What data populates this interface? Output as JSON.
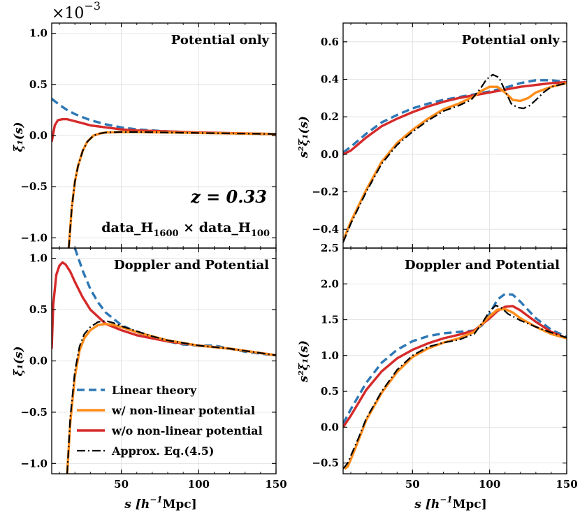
{
  "figure": {
    "scale_note": "×10",
    "scale_exp": "−3",
    "xlabel_main": "s [h",
    "xlabel_sup": "−1",
    "xlabel_unit": "Mpc]",
    "redshift": "z = 0.33",
    "cross": "data_H",
    "cross_sub1": "1600",
    "cross_x": "×",
    "cross_b": "data_H",
    "cross_sub2": "100",
    "ylabel_left": "ξ₁(s)",
    "ylabel_right": "s²ξ₁(s)"
  },
  "colors": {
    "linear": "#2e78b5",
    "with_nl": "#ff8c1a",
    "without_nl": "#d62a2a",
    "approx": "#000000"
  },
  "legend": [
    {
      "key": "linear",
      "label": "Linear theory"
    },
    {
      "key": "with_nl",
      "label": "w/ non-linear potential"
    },
    {
      "key": "without_nl",
      "label": "w/o non-linear potential"
    },
    {
      "key": "approx",
      "label": "Approx. Eq.(4.5)"
    }
  ],
  "chart_data": [
    {
      "type": "line",
      "title": "Potential only",
      "panel": "top-left",
      "xlim": [
        5,
        150
      ],
      "ylim": [
        -1.1,
        1.1
      ],
      "xticks": [
        50,
        100,
        150
      ],
      "yticks": [
        -1.0,
        -0.5,
        0.0,
        0.5,
        1.0
      ],
      "series": [
        {
          "key": "linear",
          "x": [
            5,
            10,
            15,
            20,
            25,
            30,
            40,
            50,
            60,
            70,
            80,
            100,
            120,
            150
          ],
          "y": [
            0.36,
            0.3,
            0.25,
            0.21,
            0.18,
            0.15,
            0.11,
            0.08,
            0.06,
            0.05,
            0.04,
            0.03,
            0.02,
            0.015
          ]
        },
        {
          "key": "without_nl",
          "x": [
            5,
            7,
            9,
            12,
            15,
            20,
            25,
            30,
            40,
            50,
            60,
            80,
            100,
            150
          ],
          "y": [
            -0.06,
            0.1,
            0.15,
            0.16,
            0.16,
            0.14,
            0.12,
            0.1,
            0.08,
            0.06,
            0.05,
            0.04,
            0.03,
            0.015
          ]
        },
        {
          "key": "with_nl",
          "x": [
            16,
            18,
            20,
            22,
            25,
            28,
            32,
            36,
            40,
            50,
            60,
            80,
            100,
            150
          ],
          "y": [
            -1.1,
            -0.7,
            -0.45,
            -0.3,
            -0.15,
            -0.06,
            0.0,
            0.02,
            0.03,
            0.035,
            0.035,
            0.03,
            0.025,
            0.015
          ]
        },
        {
          "key": "approx",
          "x": [
            16,
            18,
            20,
            22,
            25,
            28,
            32,
            36,
            40,
            50,
            60,
            80,
            100,
            150
          ],
          "y": [
            -1.1,
            -0.7,
            -0.45,
            -0.3,
            -0.15,
            -0.06,
            0.0,
            0.02,
            0.03,
            0.035,
            0.035,
            0.03,
            0.025,
            0.015
          ]
        }
      ]
    },
    {
      "type": "line",
      "title": "Doppler and Potential",
      "panel": "bottom-left",
      "xlim": [
        5,
        150
      ],
      "ylim": [
        -1.1,
        1.1
      ],
      "xticks": [
        50,
        100,
        150
      ],
      "yticks": [
        -1.0,
        -0.5,
        0.0,
        0.5,
        1.0
      ],
      "series": [
        {
          "key": "linear",
          "x": [
            20,
            25,
            30,
            35,
            40,
            50,
            60,
            70,
            80,
            90,
            100,
            110,
            120,
            130,
            140,
            150
          ],
          "y": [
            1.1,
            0.88,
            0.7,
            0.57,
            0.47,
            0.35,
            0.28,
            0.23,
            0.19,
            0.16,
            0.15,
            0.15,
            0.12,
            0.09,
            0.07,
            0.055
          ]
        },
        {
          "key": "without_nl",
          "x": [
            5,
            6,
            8,
            10,
            12,
            14,
            17,
            20,
            25,
            30,
            40,
            50,
            60,
            80,
            100,
            120,
            150
          ],
          "y": [
            0.12,
            0.55,
            0.84,
            0.93,
            0.96,
            0.94,
            0.87,
            0.77,
            0.62,
            0.5,
            0.36,
            0.3,
            0.25,
            0.19,
            0.15,
            0.12,
            0.055
          ]
        },
        {
          "key": "with_nl",
          "x": [
            15,
            17,
            20,
            23,
            26,
            30,
            35,
            40,
            45,
            50,
            60,
            70,
            80,
            100,
            120,
            150
          ],
          "y": [
            -1.1,
            -0.6,
            -0.15,
            0.1,
            0.22,
            0.3,
            0.35,
            0.36,
            0.35,
            0.33,
            0.28,
            0.24,
            0.2,
            0.15,
            0.12,
            0.055
          ]
        },
        {
          "key": "approx",
          "x": [
            15,
            17,
            20,
            23,
            26,
            30,
            35,
            40,
            45,
            50,
            60,
            70,
            80,
            100,
            120,
            150
          ],
          "y": [
            -1.1,
            -0.55,
            -0.1,
            0.14,
            0.26,
            0.33,
            0.38,
            0.39,
            0.37,
            0.34,
            0.29,
            0.24,
            0.2,
            0.15,
            0.12,
            0.055
          ]
        }
      ]
    },
    {
      "type": "line",
      "title": "Potential only",
      "panel": "top-right",
      "xlim": [
        5,
        150
      ],
      "ylim": [
        -0.5,
        0.7
      ],
      "xticks": [
        50,
        100,
        150
      ],
      "yticks": [
        -0.4,
        -0.2,
        0.0,
        0.2,
        0.4,
        0.6
      ],
      "series": [
        {
          "key": "linear",
          "x": [
            5,
            10,
            20,
            30,
            40,
            50,
            60,
            70,
            80,
            90,
            100,
            110,
            120,
            130,
            140,
            150
          ],
          "y": [
            0.01,
            0.04,
            0.11,
            0.17,
            0.21,
            0.245,
            0.27,
            0.29,
            0.305,
            0.32,
            0.335,
            0.355,
            0.38,
            0.395,
            0.395,
            0.385
          ]
        },
        {
          "key": "without_nl",
          "x": [
            5,
            10,
            20,
            30,
            40,
            50,
            60,
            70,
            80,
            90,
            100,
            110,
            120,
            130,
            140,
            150
          ],
          "y": [
            0.0,
            0.02,
            0.09,
            0.15,
            0.19,
            0.225,
            0.255,
            0.28,
            0.3,
            0.315,
            0.33,
            0.345,
            0.36,
            0.37,
            0.38,
            0.385
          ]
        },
        {
          "key": "with_nl",
          "x": [
            5,
            10,
            20,
            30,
            40,
            50,
            60,
            70,
            80,
            90,
            95,
            100,
            105,
            110,
            115,
            120,
            125,
            130,
            140,
            150
          ],
          "y": [
            -0.46,
            -0.36,
            -0.19,
            -0.04,
            0.06,
            0.13,
            0.19,
            0.24,
            0.27,
            0.31,
            0.34,
            0.36,
            0.36,
            0.33,
            0.29,
            0.285,
            0.3,
            0.33,
            0.36,
            0.38
          ]
        },
        {
          "key": "approx",
          "x": [
            5,
            10,
            20,
            30,
            40,
            50,
            60,
            70,
            80,
            88,
            94,
            98,
            102,
            106,
            110,
            114,
            118,
            122,
            126,
            130,
            135,
            140,
            150
          ],
          "y": [
            -0.47,
            -0.37,
            -0.2,
            -0.05,
            0.05,
            0.12,
            0.18,
            0.23,
            0.26,
            0.29,
            0.35,
            0.4,
            0.425,
            0.41,
            0.34,
            0.27,
            0.25,
            0.245,
            0.26,
            0.29,
            0.33,
            0.36,
            0.38
          ]
        }
      ]
    },
    {
      "type": "line",
      "title": "Doppler and Potential",
      "panel": "bottom-right",
      "xlim": [
        5,
        150
      ],
      "ylim": [
        -0.65,
        2.5
      ],
      "xticks": [
        50,
        100,
        150
      ],
      "yticks": [
        -0.5,
        0.0,
        0.5,
        1.0,
        1.5,
        2.0,
        2.5
      ],
      "series": [
        {
          "key": "linear",
          "x": [
            5,
            10,
            20,
            30,
            40,
            50,
            60,
            70,
            80,
            90,
            95,
            100,
            105,
            110,
            115,
            120,
            130,
            140,
            150
          ],
          "y": [
            0.05,
            0.25,
            0.62,
            0.9,
            1.08,
            1.2,
            1.27,
            1.31,
            1.33,
            1.35,
            1.42,
            1.58,
            1.78,
            1.86,
            1.85,
            1.75,
            1.52,
            1.36,
            1.26
          ]
        },
        {
          "key": "without_nl",
          "x": [
            5,
            10,
            20,
            30,
            40,
            50,
            60,
            70,
            80,
            90,
            100,
            105,
            110,
            115,
            120,
            130,
            140,
            150
          ],
          "y": [
            0.0,
            0.16,
            0.52,
            0.78,
            0.96,
            1.08,
            1.17,
            1.24,
            1.29,
            1.35,
            1.52,
            1.62,
            1.68,
            1.69,
            1.63,
            1.47,
            1.33,
            1.24
          ]
        },
        {
          "key": "with_nl",
          "x": [
            6,
            8,
            10,
            15,
            20,
            30,
            40,
            50,
            60,
            70,
            80,
            90,
            100,
            105,
            110,
            115,
            120,
            130,
            140,
            150
          ],
          "y": [
            -0.58,
            -0.55,
            -0.45,
            -0.18,
            0.1,
            0.48,
            0.77,
            0.98,
            1.1,
            1.18,
            1.24,
            1.33,
            1.55,
            1.64,
            1.65,
            1.6,
            1.52,
            1.4,
            1.3,
            1.24
          ]
        },
        {
          "key": "approx",
          "x": [
            5,
            8,
            10,
            15,
            20,
            30,
            40,
            50,
            60,
            70,
            80,
            90,
            96,
            100,
            104,
            108,
            112,
            120,
            130,
            140,
            150
          ],
          "y": [
            -0.58,
            -0.5,
            -0.4,
            -0.15,
            0.12,
            0.5,
            0.8,
            1.0,
            1.12,
            1.18,
            1.22,
            1.3,
            1.48,
            1.62,
            1.7,
            1.66,
            1.58,
            1.49,
            1.4,
            1.32,
            1.25
          ]
        }
      ]
    }
  ]
}
